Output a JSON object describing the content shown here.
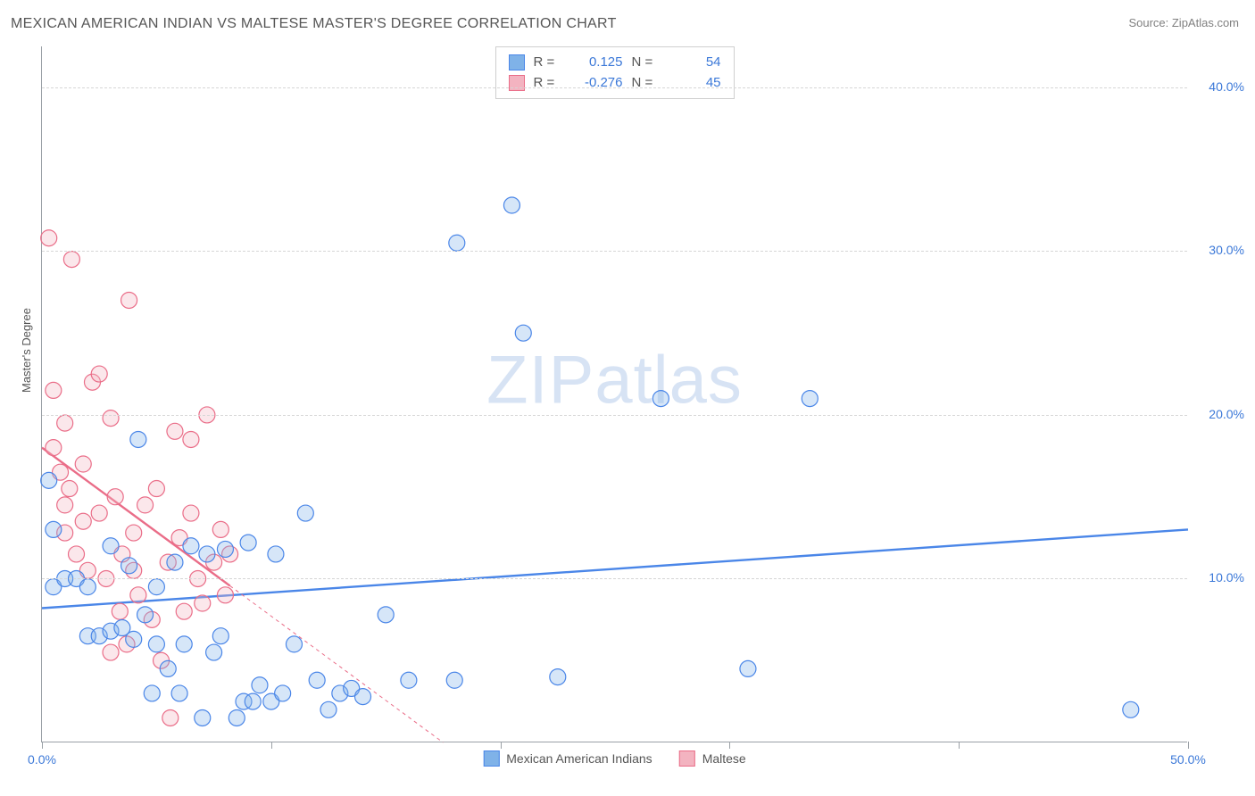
{
  "title": "MEXICAN AMERICAN INDIAN VS MALTESE MASTER'S DEGREE CORRELATION CHART",
  "source_label": "Source: ZipAtlas.com",
  "y_axis_label": "Master's Degree",
  "watermark_a": "ZIP",
  "watermark_b": "atlas",
  "chart": {
    "type": "scatter",
    "xlim": [
      0,
      50
    ],
    "ylim": [
      0,
      42.5
    ],
    "x_ticks": [
      0,
      10,
      20,
      30,
      40,
      50
    ],
    "x_tick_labels": [
      "0.0%",
      "",
      "",
      "",
      "",
      "50.0%"
    ],
    "y_ticks": [
      10,
      20,
      30,
      40
    ],
    "y_tick_labels": [
      "10.0%",
      "20.0%",
      "30.0%",
      "40.0%"
    ],
    "grid_color": "#d6d6d6",
    "axis_color": "#9aa0a6",
    "background_color": "#ffffff",
    "point_radius": 9,
    "tick_label_color": "#3b78d8"
  },
  "series": [
    {
      "name": "Mexican American Indians",
      "color_fill": "#7fb2e8",
      "color_stroke": "#4a86e8",
      "r_label": "R =",
      "r_value": "0.125",
      "n_label": "N =",
      "n_value": "54",
      "trend": {
        "x1": 0,
        "y1": 8.2,
        "x2": 50,
        "y2": 13.0,
        "solid_end_x": 50
      },
      "points": [
        [
          0.3,
          16.0
        ],
        [
          0.5,
          13.0
        ],
        [
          0.5,
          9.5
        ],
        [
          1.0,
          10.0
        ],
        [
          1.5,
          10.0
        ],
        [
          2.0,
          9.5
        ],
        [
          2.0,
          6.5
        ],
        [
          2.5,
          6.5
        ],
        [
          3.0,
          12.0
        ],
        [
          3.0,
          6.8
        ],
        [
          3.5,
          7.0
        ],
        [
          3.8,
          10.8
        ],
        [
          4.0,
          6.3
        ],
        [
          4.2,
          18.5
        ],
        [
          4.5,
          7.8
        ],
        [
          4.8,
          3.0
        ],
        [
          5.0,
          6.0
        ],
        [
          5.0,
          9.5
        ],
        [
          5.5,
          4.5
        ],
        [
          5.8,
          11.0
        ],
        [
          6.0,
          3.0
        ],
        [
          6.2,
          6.0
        ],
        [
          6.5,
          12.0
        ],
        [
          7.0,
          1.5
        ],
        [
          7.2,
          11.5
        ],
        [
          7.5,
          5.5
        ],
        [
          7.8,
          6.5
        ],
        [
          8.0,
          11.8
        ],
        [
          8.5,
          1.5
        ],
        [
          8.8,
          2.5
        ],
        [
          9.0,
          12.2
        ],
        [
          9.2,
          2.5
        ],
        [
          9.5,
          3.5
        ],
        [
          10.0,
          2.5
        ],
        [
          10.2,
          11.5
        ],
        [
          10.5,
          3.0
        ],
        [
          11.0,
          6.0
        ],
        [
          11.5,
          14.0
        ],
        [
          12.0,
          3.8
        ],
        [
          12.5,
          2.0
        ],
        [
          13.0,
          3.0
        ],
        [
          13.5,
          3.3
        ],
        [
          14.0,
          2.8
        ],
        [
          15.0,
          7.8
        ],
        [
          16.0,
          3.8
        ],
        [
          18.0,
          3.8
        ],
        [
          20.5,
          32.8
        ],
        [
          21.0,
          25.0
        ],
        [
          22.5,
          4.0
        ],
        [
          27.0,
          21.0
        ],
        [
          30.8,
          4.5
        ],
        [
          33.5,
          21.0
        ],
        [
          47.5,
          2.0
        ],
        [
          18.1,
          30.5
        ]
      ]
    },
    {
      "name": "Maltese",
      "color_fill": "#f3b3c0",
      "color_stroke": "#ea6d88",
      "r_label": "R =",
      "r_value": "-0.276",
      "n_label": "N =",
      "n_value": "45",
      "trend": {
        "x1": 0,
        "y1": 18.0,
        "x2": 17.5,
        "y2": 0,
        "solid_end_x": 8.2
      },
      "points": [
        [
          0.3,
          30.8
        ],
        [
          0.5,
          21.5
        ],
        [
          0.5,
          18.0
        ],
        [
          0.8,
          16.5
        ],
        [
          1.0,
          19.5
        ],
        [
          1.0,
          14.5
        ],
        [
          1.0,
          12.8
        ],
        [
          1.2,
          15.5
        ],
        [
          1.3,
          29.5
        ],
        [
          1.5,
          11.5
        ],
        [
          1.8,
          17.0
        ],
        [
          1.8,
          13.5
        ],
        [
          2.0,
          10.5
        ],
        [
          2.2,
          22.0
        ],
        [
          2.5,
          14.0
        ],
        [
          2.5,
          22.5
        ],
        [
          2.8,
          10.0
        ],
        [
          3.0,
          19.8
        ],
        [
          3.0,
          5.5
        ],
        [
          3.2,
          15.0
        ],
        [
          3.4,
          8.0
        ],
        [
          3.5,
          11.5
        ],
        [
          3.7,
          6.0
        ],
        [
          3.8,
          27.0
        ],
        [
          4.0,
          10.5
        ],
        [
          4.0,
          12.8
        ],
        [
          4.2,
          9.0
        ],
        [
          4.5,
          14.5
        ],
        [
          4.8,
          7.5
        ],
        [
          5.0,
          15.5
        ],
        [
          5.2,
          5.0
        ],
        [
          5.5,
          11.0
        ],
        [
          5.6,
          1.5
        ],
        [
          5.8,
          19.0
        ],
        [
          6.0,
          12.5
        ],
        [
          6.2,
          8.0
        ],
        [
          6.5,
          14.0
        ],
        [
          6.5,
          18.5
        ],
        [
          6.8,
          10.0
        ],
        [
          7.0,
          8.5
        ],
        [
          7.2,
          20.0
        ],
        [
          7.5,
          11.0
        ],
        [
          7.8,
          13.0
        ],
        [
          8.0,
          9.0
        ],
        [
          8.2,
          11.5
        ]
      ]
    }
  ],
  "legend_bottom": {
    "items": [
      "Mexican American Indians",
      "Maltese"
    ]
  }
}
